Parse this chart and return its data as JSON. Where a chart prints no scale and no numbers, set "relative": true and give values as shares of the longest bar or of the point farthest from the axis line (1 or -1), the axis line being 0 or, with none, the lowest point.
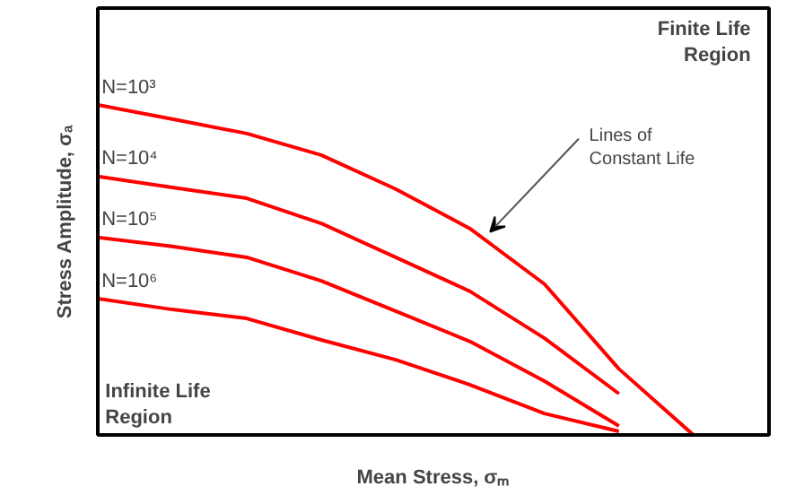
{
  "chart_data": {
    "type": "line",
    "relative": true,
    "xlabel": "Mean Stress, σₘ",
    "ylabel": "Stress Amplitude, σₐ",
    "categories": [
      null,
      null,
      null,
      null,
      null,
      null,
      null,
      null,
      null
    ],
    "series": [
      {
        "name": "N=10³",
        "color": "#ff0000",
        "values": [
          1.0,
          0.957,
          0.913,
          0.848,
          0.745,
          0.625,
          0.457,
          0.2,
          0
        ]
      },
      {
        "name": "N=10⁴",
        "color": "#ff0000",
        "values": [
          0.783,
          0.75,
          0.717,
          0.641,
          0.538,
          0.435,
          0.293,
          0.125,
          null
        ]
      },
      {
        "name": "N=10⁵",
        "color": "#ff0000",
        "values": [
          0.598,
          0.571,
          0.538,
          0.467,
          0.375,
          0.283,
          0.163,
          0.027,
          null
        ]
      },
      {
        "name": "N=10⁶",
        "color": "#ff0000",
        "values": [
          0.413,
          0.38,
          0.353,
          0.288,
          0.228,
          0.152,
          0.065,
          0.011,
          null
        ]
      }
    ],
    "annotations": [
      "Finite Life\nRegion",
      "Lines of\nConstant Life",
      "Infinite Life\nRegion"
    ],
    "legend": false,
    "marker": "none",
    "line_style": "solid"
  }
}
